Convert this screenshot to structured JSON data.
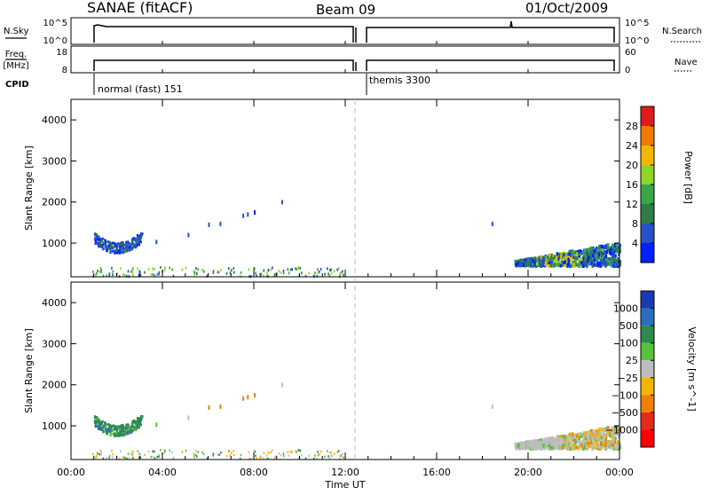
{
  "header": {
    "title": "SANAE (fitACF)",
    "beam": "Beam 09",
    "date": "01/Oct/2009"
  },
  "top_panels": {
    "nsky_label": "N.Sky",
    "nsky_ticks": [
      "10^5",
      "10^0"
    ],
    "nsearch_label": "N.Search",
    "nsearch_ticks": [
      "10^5",
      "10^0"
    ],
    "freq_label_1": "Freq.",
    "freq_label_2": "[MHz]",
    "freq_ticks": [
      "18",
      "8"
    ],
    "nave_label": "Nave",
    "nave_ticks": [
      "60",
      "0"
    ],
    "cpid_label": "CPID",
    "cpid_segments": [
      {
        "label": "normal (fast) 151",
        "start_hour": 0.85
      },
      {
        "label": "themis 3300",
        "start_hour": 12.55
      }
    ]
  },
  "chart_data": [
    {
      "type": "heatmap",
      "name": "power",
      "xlabel": "",
      "ylabel": "Slant Range [km]",
      "xlim": [
        0,
        24
      ],
      "ylim": [
        180,
        4500
      ],
      "y_ticks": [
        "1000",
        "2000",
        "3000",
        "4000"
      ],
      "colorbar_label": "Power [dB]",
      "colorbar_ticks": [
        "4",
        "8",
        "12",
        "16",
        "20",
        "24",
        "28"
      ],
      "colors": [
        "#0020ff",
        "#2850c8",
        "#2e7e46",
        "#3aa64a",
        "#8fd62a",
        "#f2b800",
        "#f07a00",
        "#e11a1a"
      ]
    },
    {
      "type": "heatmap",
      "name": "velocity",
      "xlabel": "Time UT",
      "ylabel": "Slant Range [km]",
      "xlim": [
        0,
        24
      ],
      "ylim": [
        180,
        4500
      ],
      "y_ticks": [
        "1000",
        "2000",
        "3000",
        "4000"
      ],
      "x_ticks": [
        "00:00",
        "04:00",
        "08:00",
        "12:00",
        "16:00",
        "20:00",
        "00:00"
      ],
      "colorbar_label": "Velocity [m s^-1]",
      "colorbar_ticks": [
        "1000",
        "500",
        "100",
        "25",
        "−25",
        "−100",
        "−500",
        "−1000"
      ],
      "colors": [
        "#1a3bb0",
        "#2b6ec0",
        "#2d8a4e",
        "#58c23a",
        "#bdbdbd",
        "#f2b400",
        "#f08000",
        "#e62a1a",
        "#ff0000"
      ]
    }
  ]
}
